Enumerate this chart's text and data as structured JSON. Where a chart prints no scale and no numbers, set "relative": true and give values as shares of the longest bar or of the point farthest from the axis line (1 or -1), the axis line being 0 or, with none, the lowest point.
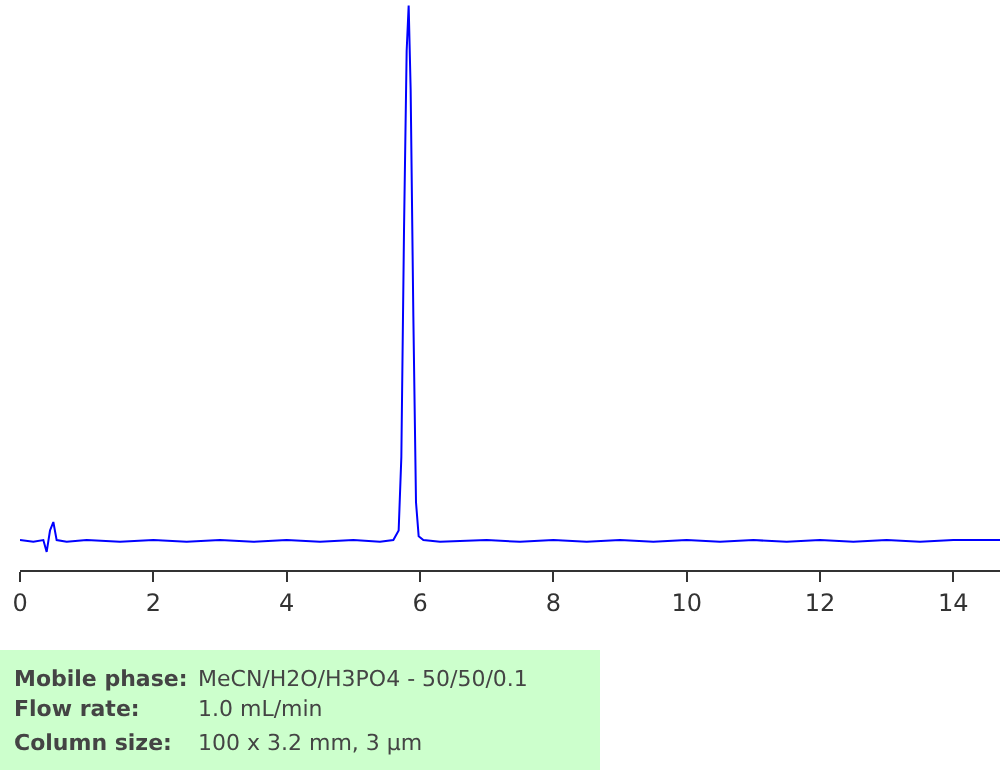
{
  "chart_data": {
    "type": "line",
    "relative": true,
    "xlim": [
      0,
      14.7
    ],
    "xticks": [
      0,
      2,
      4,
      6,
      8,
      10,
      12,
      14
    ],
    "marker": "none",
    "line_style": "solid",
    "series": [
      {
        "color": "#0000ff",
        "x": [
          0,
          0.2,
          0.35,
          0.4,
          0.45,
          0.5,
          0.55,
          0.7,
          1,
          1.5,
          2,
          2.5,
          3,
          3.5,
          4,
          4.5,
          5,
          5.4,
          5.6,
          5.68,
          5.72,
          5.76,
          5.8,
          5.83,
          5.86,
          5.9,
          5.94,
          5.98,
          6.05,
          6.3,
          7,
          7.5,
          8,
          8.5,
          9,
          9.5,
          10,
          10.5,
          11,
          11.5,
          12,
          12.5,
          13,
          13.5,
          14,
          14.7
        ],
        "values": [
          0.053,
          0.05,
          0.053,
          0.032,
          0.07,
          0.085,
          0.053,
          0.05,
          0.053,
          0.05,
          0.053,
          0.05,
          0.053,
          0.05,
          0.053,
          0.05,
          0.053,
          0.05,
          0.053,
          0.07,
          0.2,
          0.6,
          0.92,
          1.0,
          0.85,
          0.45,
          0.12,
          0.06,
          0.053,
          0.05,
          0.053,
          0.05,
          0.053,
          0.05,
          0.053,
          0.05,
          0.053,
          0.05,
          0.053,
          0.05,
          0.053,
          0.05,
          0.053,
          0.05,
          0.053,
          0.053
        ]
      }
    ],
    "annotations": [
      "Mobile phase:",
      "MeCN/H2O/H3PO4 - 50/50/0.1",
      "Flow rate:",
      "1.0 mL/min",
      "Column size:",
      "100 x 3.2 mm, 3 µm"
    ]
  }
}
